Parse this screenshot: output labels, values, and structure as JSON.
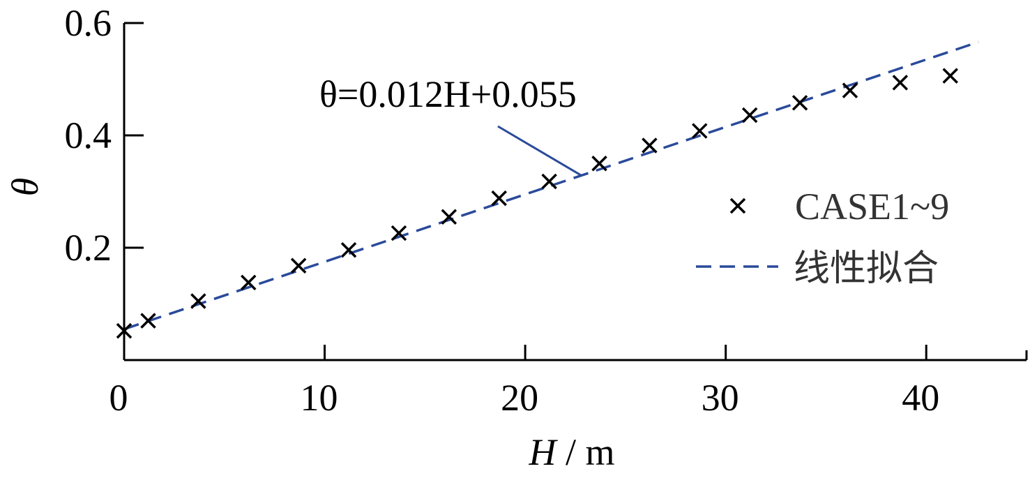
{
  "chart_data": {
    "type": "scatter",
    "x_axis": {
      "label_var": "H",
      "label_unit": "m",
      "range": [
        0,
        45
      ],
      "ticks": [
        0,
        10,
        20,
        30,
        40
      ],
      "tick_labels": [
        "0",
        "10",
        "20",
        "30",
        "40"
      ]
    },
    "y_axis": {
      "label": "θ",
      "range": [
        0,
        0.6
      ],
      "ticks": [
        0.2,
        0.4,
        0.6
      ],
      "tick_labels": [
        "0.2",
        "0.4",
        "0.6"
      ]
    },
    "series": [
      {
        "name": "CASE1~9",
        "kind": "scatter",
        "marker": "x",
        "color": "#000000",
        "x": [
          0.0,
          1.2,
          3.7,
          6.2,
          8.7,
          11.2,
          13.7,
          16.2,
          18.7,
          21.2,
          23.7,
          26.2,
          28.7,
          31.2,
          33.7,
          36.2,
          38.7,
          41.2
        ],
        "y": [
          0.052,
          0.07,
          0.105,
          0.138,
          0.168,
          0.196,
          0.226,
          0.255,
          0.288,
          0.318,
          0.35,
          0.382,
          0.408,
          0.436,
          0.458,
          0.48,
          0.494,
          0.506
        ]
      },
      {
        "name": "线性拟合",
        "kind": "line",
        "style": "dashed",
        "color": "#2a4a9a",
        "slope": 0.012,
        "intercept": 0.055,
        "x_range": [
          0,
          42.6
        ]
      }
    ],
    "annotation": {
      "text": "θ=0.012H+0.055",
      "points_to_x": 22.8
    },
    "legend": {
      "position": "right",
      "entries": [
        "CASE1~9",
        "线性拟合"
      ]
    },
    "grid": false
  }
}
